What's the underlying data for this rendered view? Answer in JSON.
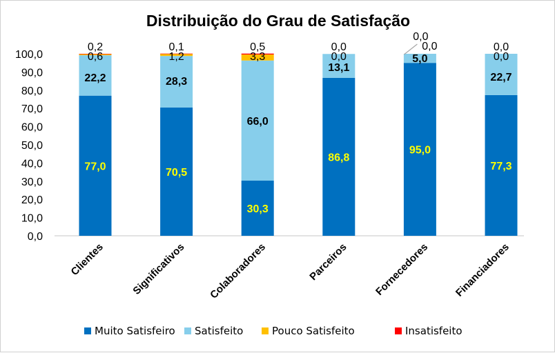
{
  "chart_data": {
    "type": "bar",
    "stacked": true,
    "title": "Distribuição do Grau de Satisfação",
    "xlabel": "",
    "ylabel": "",
    "ylim": [
      0,
      100
    ],
    "yticks": [
      "0,0",
      "10,0",
      "20,0",
      "30,0",
      "40,0",
      "50,0",
      "60,0",
      "70,0",
      "80,0",
      "90,0",
      "100,0"
    ],
    "grid": false,
    "legend_position": "bottom",
    "categories": [
      "Clientes",
      "Significativos",
      "Colaboradores",
      "Parceiros",
      "Fornecedores",
      "Financiadores"
    ],
    "series": [
      {
        "name": "Muito Satisfeiro",
        "color": "#0070C0",
        "label_color": "#FFFF00",
        "values": [
          77.0,
          70.5,
          30.3,
          86.8,
          95.0,
          77.3
        ],
        "labels": [
          "77,0",
          "70,5",
          "30,3",
          "86,8",
          "95,0",
          "77,3"
        ]
      },
      {
        "name": "Satisfeito",
        "color": "#87CEEB",
        "label_color": "#000000",
        "values": [
          22.2,
          28.3,
          66.0,
          13.1,
          5.0,
          22.7
        ],
        "labels": [
          "22,2",
          "28,3",
          "66,0",
          "13,1",
          "5,0",
          "22,7"
        ]
      },
      {
        "name": "Pouco Satisfeito",
        "color": "#FFC000",
        "label_color": "#000000",
        "values": [
          0.6,
          1.2,
          3.3,
          0.0,
          0.0,
          0.0
        ],
        "labels": [
          "0,6",
          "1,2",
          "3,3",
          "0,0",
          "0,0",
          "0,0"
        ]
      },
      {
        "name": "Insatisfeito",
        "color": "#FF0000",
        "label_color": "#000000",
        "values": [
          0.2,
          0.1,
          0.5,
          0.0,
          0.0,
          0.0
        ],
        "labels": [
          "0,2",
          "0,1",
          "0,5",
          "0,0",
          "0,0",
          "0,0"
        ]
      }
    ]
  }
}
